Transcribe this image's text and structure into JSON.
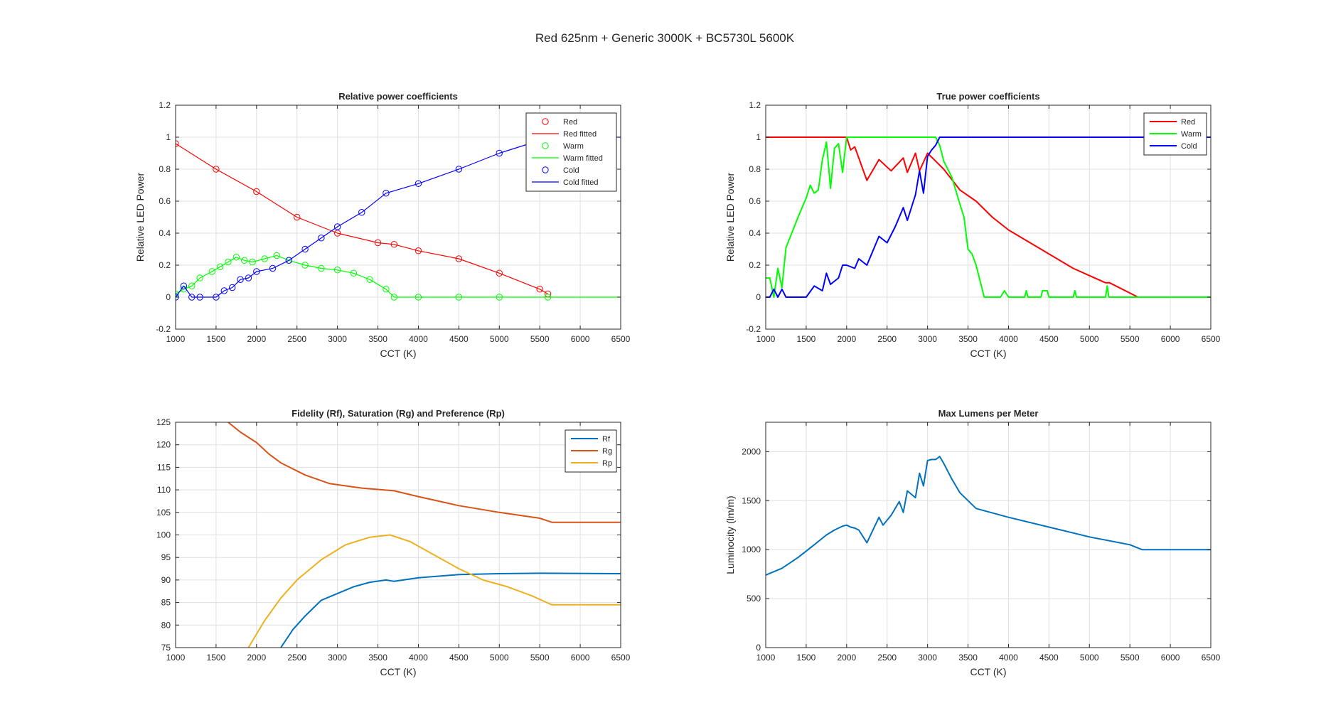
{
  "figure": {
    "title": "Red 625nm + Generic 3000K + BC5730L 5600K"
  },
  "colors": {
    "red": "#ff0000",
    "green": "#00ff00",
    "blue": "#0000ff",
    "rf": "#0072bd",
    "rg": "#d95319",
    "rp": "#edb120",
    "lum": "#0072bd",
    "grid": "#dfdfdf",
    "axis": "#262626"
  },
  "chart_data": [
    {
      "id": "relative",
      "type": "scatter",
      "title": "Relative power coefficients",
      "xlabel": "CCT (K)",
      "ylabel": "Relative LED Power",
      "xlim": [
        1000,
        6500
      ],
      "ylim": [
        -0.2,
        1.2
      ],
      "xticks": [
        1000,
        1500,
        2000,
        2500,
        3000,
        3500,
        4000,
        4500,
        5000,
        5500,
        6000,
        6500
      ],
      "yticks": [
        -0.2,
        0,
        0.2,
        0.4,
        0.6,
        0.8,
        1,
        1.2
      ],
      "grid": true,
      "legend_position": "top-right",
      "series": [
        {
          "name": "Red",
          "kind": "markers",
          "color": "red",
          "x": [
            1000,
            1500,
            2000,
            2500,
            3000,
            3500,
            3700,
            4000,
            4500,
            5000,
            5500,
            5600
          ],
          "y": [
            0.96,
            0.8,
            0.66,
            0.5,
            0.4,
            0.34,
            0.33,
            0.29,
            0.24,
            0.15,
            0.05,
            0.02
          ]
        },
        {
          "name": "Red fitted",
          "kind": "line",
          "color": "red",
          "x": [
            1000,
            1500,
            2000,
            2500,
            3000,
            3500,
            3700,
            4000,
            4500,
            5000,
            5500,
            5600
          ],
          "y": [
            0.96,
            0.8,
            0.66,
            0.5,
            0.4,
            0.34,
            0.33,
            0.29,
            0.24,
            0.15,
            0.05,
            0.02
          ]
        },
        {
          "name": "Warm",
          "kind": "markers",
          "color": "green",
          "x": [
            1000,
            1100,
            1200,
            1300,
            1450,
            1550,
            1650,
            1750,
            1850,
            1950,
            2100,
            2250,
            2400,
            2600,
            2800,
            3000,
            3200,
            3400,
            3600,
            3700,
            4000,
            4500,
            5000,
            5600
          ],
          "y": [
            0.02,
            0.05,
            0.07,
            0.12,
            0.16,
            0.19,
            0.22,
            0.25,
            0.23,
            0.22,
            0.24,
            0.26,
            0.23,
            0.2,
            0.18,
            0.17,
            0.15,
            0.11,
            0.05,
            0.0,
            0.0,
            0.0,
            0.0,
            0.0
          ]
        },
        {
          "name": "Warm fitted",
          "kind": "line",
          "color": "green",
          "x": [
            1000,
            1100,
            1200,
            1300,
            1450,
            1550,
            1650,
            1750,
            1850,
            1950,
            2100,
            2250,
            2400,
            2600,
            2800,
            3000,
            3200,
            3400,
            3600,
            3700,
            4000,
            4500,
            5000,
            5600,
            6500
          ],
          "y": [
            0.02,
            0.05,
            0.07,
            0.12,
            0.16,
            0.19,
            0.22,
            0.25,
            0.23,
            0.22,
            0.24,
            0.26,
            0.23,
            0.2,
            0.18,
            0.17,
            0.15,
            0.11,
            0.05,
            0.0,
            0.0,
            0.0,
            0.0,
            0.0,
            0.0
          ]
        },
        {
          "name": "Cold",
          "kind": "markers",
          "color": "blue",
          "x": [
            1000,
            1100,
            1200,
            1300,
            1500,
            1600,
            1700,
            1800,
            1900,
            2000,
            2200,
            2400,
            2600,
            2800,
            3000,
            3300,
            3600,
            4000,
            4500,
            5000,
            5500
          ],
          "y": [
            0.0,
            0.07,
            0.0,
            0.0,
            0.0,
            0.04,
            0.06,
            0.11,
            0.12,
            0.16,
            0.18,
            0.23,
            0.3,
            0.37,
            0.44,
            0.53,
            0.65,
            0.71,
            0.8,
            0.9,
            0.98
          ]
        },
        {
          "name": "Cold fitted",
          "kind": "line",
          "color": "blue",
          "x": [
            1000,
            1100,
            1200,
            1300,
            1500,
            1600,
            1700,
            1800,
            1900,
            2000,
            2200,
            2400,
            2600,
            2800,
            3000,
            3300,
            3600,
            4000,
            4500,
            5000,
            5500,
            5700,
            6500
          ],
          "y": [
            0.0,
            0.07,
            0.0,
            0.0,
            0.0,
            0.04,
            0.06,
            0.11,
            0.12,
            0.16,
            0.18,
            0.23,
            0.3,
            0.37,
            0.44,
            0.53,
            0.65,
            0.71,
            0.8,
            0.9,
            0.98,
            1.0,
            1.0
          ]
        }
      ]
    },
    {
      "id": "true",
      "type": "line",
      "title": "True power coefficients",
      "xlabel": "CCT (K)",
      "ylabel": "Relative LED Power",
      "xlim": [
        1000,
        6500
      ],
      "ylim": [
        -0.2,
        1.2
      ],
      "xticks": [
        1000,
        1500,
        2000,
        2500,
        3000,
        3500,
        4000,
        4500,
        5000,
        5500,
        6000,
        6500
      ],
      "yticks": [
        -0.2,
        0,
        0.2,
        0.4,
        0.6,
        0.8,
        1,
        1.2
      ],
      "grid": true,
      "legend_position": "top-right",
      "series": [
        {
          "name": "Red",
          "color": "red",
          "x": [
            1000,
            2000,
            2050,
            2100,
            2250,
            2400,
            2550,
            2700,
            2750,
            2850,
            2900,
            3000,
            3100,
            3200,
            3400,
            3600,
            3800,
            4000,
            4400,
            4800,
            5200,
            5250,
            5600,
            6500
          ],
          "y": [
            1.0,
            1.0,
            0.92,
            0.94,
            0.73,
            0.86,
            0.79,
            0.87,
            0.78,
            0.9,
            0.79,
            0.9,
            0.85,
            0.8,
            0.67,
            0.6,
            0.5,
            0.42,
            0.3,
            0.18,
            0.09,
            0.09,
            0.0,
            0.0
          ]
        },
        {
          "name": "Warm",
          "color": "green",
          "x": [
            1000,
            1050,
            1100,
            1150,
            1200,
            1250,
            1400,
            1500,
            1550,
            1600,
            1650,
            1700,
            1750,
            1800,
            1850,
            1900,
            1950,
            2000,
            2050,
            3100,
            3150,
            3200,
            3300,
            3400,
            3450,
            3500,
            3550,
            3600,
            3700,
            3900,
            3950,
            4000,
            4200,
            4220,
            4240,
            4400,
            4420,
            4480,
            4500,
            4800,
            4820,
            4840,
            5200,
            5220,
            5240,
            6500
          ],
          "y": [
            0.12,
            0.12,
            0.0,
            0.18,
            0.06,
            0.31,
            0.5,
            0.62,
            0.7,
            0.65,
            0.67,
            0.86,
            0.97,
            0.68,
            0.93,
            0.96,
            0.78,
            1.0,
            1.0,
            1.0,
            0.95,
            0.85,
            0.75,
            0.58,
            0.5,
            0.3,
            0.27,
            0.2,
            0.0,
            0.0,
            0.04,
            0.0,
            0.0,
            0.04,
            0.0,
            0.0,
            0.04,
            0.04,
            0.0,
            0.0,
            0.04,
            0.0,
            0.0,
            0.07,
            0.0,
            0.0
          ]
        },
        {
          "name": "Cold",
          "color": "blue",
          "x": [
            1000,
            1050,
            1100,
            1150,
            1200,
            1250,
            1500,
            1600,
            1700,
            1750,
            1800,
            1900,
            1950,
            2000,
            2100,
            2150,
            2250,
            2400,
            2500,
            2600,
            2700,
            2750,
            2850,
            2900,
            2950,
            3000,
            3050,
            3100,
            3150,
            3200,
            6500
          ],
          "y": [
            0.0,
            0.0,
            0.05,
            0.0,
            0.05,
            0.0,
            0.0,
            0.07,
            0.04,
            0.15,
            0.08,
            0.12,
            0.2,
            0.2,
            0.18,
            0.24,
            0.2,
            0.38,
            0.34,
            0.44,
            0.56,
            0.48,
            0.64,
            0.79,
            0.65,
            0.88,
            0.92,
            0.95,
            1.0,
            1.0,
            1.0
          ]
        }
      ]
    },
    {
      "id": "fidelity",
      "type": "line",
      "title": "Fidelity (Rf), Saturation (Rg) and Preference (Rp)",
      "xlabel": "CCT (K)",
      "ylabel": "",
      "xlim": [
        1000,
        6500
      ],
      "ylim": [
        75,
        125
      ],
      "xticks": [
        1000,
        1500,
        2000,
        2500,
        3000,
        3500,
        4000,
        4500,
        5000,
        5500,
        6000,
        6500
      ],
      "yticks": [
        75,
        80,
        85,
        90,
        95,
        100,
        105,
        110,
        115,
        120,
        125
      ],
      "grid": true,
      "legend_position": "top-right",
      "series": [
        {
          "name": "Rf",
          "color": "rf",
          "x": [
            2300,
            2450,
            2600,
            2800,
            3000,
            3200,
            3400,
            3600,
            3700,
            4000,
            4500,
            5000,
            5500,
            6500
          ],
          "y": [
            75,
            79,
            82,
            85.5,
            87,
            88.5,
            89.5,
            90,
            89.7,
            90.5,
            91.2,
            91.4,
            91.5,
            91.4
          ]
        },
        {
          "name": "Rg",
          "color": "rg",
          "x": [
            1650,
            1800,
            2000,
            2150,
            2300,
            2600,
            2900,
            3300,
            3700,
            4000,
            4500,
            5000,
            5500,
            5650,
            6500
          ],
          "y": [
            125,
            122.8,
            120.5,
            118,
            116,
            113.3,
            111.4,
            110.4,
            109.8,
            108.5,
            106.5,
            105,
            103.7,
            102.8,
            102.8
          ]
        },
        {
          "name": "Rp",
          "color": "rp",
          "x": [
            1900,
            2100,
            2300,
            2500,
            2800,
            3100,
            3400,
            3650,
            3900,
            4200,
            4500,
            4800,
            5100,
            5400,
            5650,
            6500
          ],
          "y": [
            75,
            81,
            86,
            90,
            94.5,
            97.8,
            99.5,
            100,
            98.5,
            95.5,
            92.5,
            90,
            88.5,
            86.5,
            84.5,
            84.5
          ]
        }
      ]
    },
    {
      "id": "lumens",
      "type": "line",
      "title": "Max Lumens per Meter",
      "xlabel": "CCT (K)",
      "ylabel": "Luminocity (lm/m)",
      "xlim": [
        1000,
        6500
      ],
      "ylim": [
        0,
        2300
      ],
      "xticks": [
        1000,
        1500,
        2000,
        2500,
        3000,
        3500,
        4000,
        4500,
        5000,
        5500,
        6000,
        6500
      ],
      "yticks": [
        0,
        500,
        1000,
        1500,
        2000
      ],
      "grid": true,
      "legend_position": "none",
      "series": [
        {
          "name": "",
          "color": "lum",
          "x": [
            1000,
            1200,
            1400,
            1600,
            1750,
            1850,
            1950,
            2000,
            2050,
            2100,
            2150,
            2250,
            2400,
            2450,
            2550,
            2650,
            2700,
            2750,
            2850,
            2900,
            2950,
            3000,
            3050,
            3100,
            3150,
            3200,
            3300,
            3400,
            3600,
            4000,
            4500,
            5000,
            5500,
            5650,
            6500
          ],
          "y": [
            740,
            810,
            920,
            1050,
            1150,
            1200,
            1240,
            1250,
            1230,
            1220,
            1200,
            1070,
            1330,
            1250,
            1350,
            1490,
            1380,
            1600,
            1530,
            1780,
            1650,
            1910,
            1920,
            1920,
            1950,
            1880,
            1720,
            1580,
            1420,
            1330,
            1230,
            1130,
            1050,
            1000,
            1000
          ]
        }
      ]
    }
  ]
}
